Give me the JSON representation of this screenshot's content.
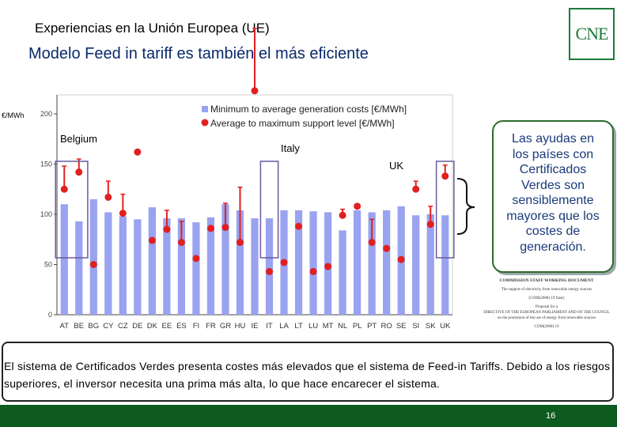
{
  "header": {
    "title": "Experiencias en la Unión Europea (UE)",
    "subtitle_bold": "Modelo",
    "subtitle_rest": " Feed in tariff es también el más eficiente"
  },
  "logo": {
    "text": "CNE",
    "color": "#1b7a3a"
  },
  "chart_data": {
    "type": "bar",
    "ylabel": "€/MWh",
    "ylim": [
      0,
      200
    ],
    "yticks": [
      0,
      50,
      100,
      150,
      200
    ],
    "categories": [
      "AT",
      "BE",
      "BG",
      "CY",
      "CZ",
      "DE",
      "DK",
      "EE",
      "ES",
      "FI",
      "FR",
      "GR",
      "HU",
      "IE",
      "IT",
      "LA",
      "LT",
      "LU",
      "MT",
      "NL",
      "PL",
      "PT",
      "RO",
      "SE",
      "SI",
      "SK",
      "UK"
    ],
    "series": [
      {
        "name": "Minimum to average generation costs [€/MWh]",
        "kind": "bar",
        "color": "#9aa3f0",
        "values": [
          110,
          93,
          115,
          102,
          98,
          95,
          107,
          96,
          96,
          92,
          97,
          110,
          104,
          96,
          96,
          104,
          104,
          103,
          102,
          84,
          104,
          102,
          104,
          108,
          99,
          100,
          99
        ]
      },
      {
        "name": "Average to maximum support level [€/MWh]",
        "kind": "point-range",
        "color": "#e02020",
        "values": [
          125,
          142,
          50,
          117,
          101,
          162,
          74,
          85,
          72,
          56,
          86,
          87,
          72,
          223,
          43,
          52,
          88,
          43,
          48,
          99,
          108,
          72,
          66,
          55,
          125,
          90,
          138
        ],
        "max": [
          148,
          155,
          null,
          133,
          120,
          null,
          null,
          104,
          93,
          null,
          null,
          111,
          127,
          285,
          null,
          null,
          null,
          null,
          null,
          105,
          null,
          95,
          null,
          null,
          133,
          108,
          149
        ]
      }
    ],
    "annotations": [
      {
        "text": "Belgium",
        "category_index": 1
      },
      {
        "text": "Italy",
        "category_index": 14
      },
      {
        "text": "UK",
        "category_index": 26
      }
    ]
  },
  "callout": {
    "lines": [
      "Las ayudas en",
      "los países con",
      "Certificados",
      "Verdes son",
      "sensiblemente",
      "mayores que los",
      "costes de",
      "generación."
    ]
  },
  "doc_thumb": {
    "l1": "COMMISSION STAFF WORKING DOCUMENT",
    "l2": "The support of electricity from renewable energy sources",
    "l3": "{COM(2008) 19 final}",
    "l4": "Proposal for a",
    "l5": "DIRECTIVE OF THE EUROPEAN PARLIAMENT AND OF THE COUNCIL",
    "l6": "on the promotion of the use of energy from renewable sources",
    "l7": "COM(2008) 19"
  },
  "footer_text": "El sistema de Certificados Verdes presenta costes más elevados que el sistema de Feed-in Tariffs. Debido a los riesgos superiores, el inversor necesita una prima más alta, lo que hace encarecer el sistema.",
  "page_number": "16",
  "colors": {
    "footer": "#0e5b1f",
    "title_blue": "#0a2a6b",
    "highlight_box": "#6a5aa0"
  }
}
